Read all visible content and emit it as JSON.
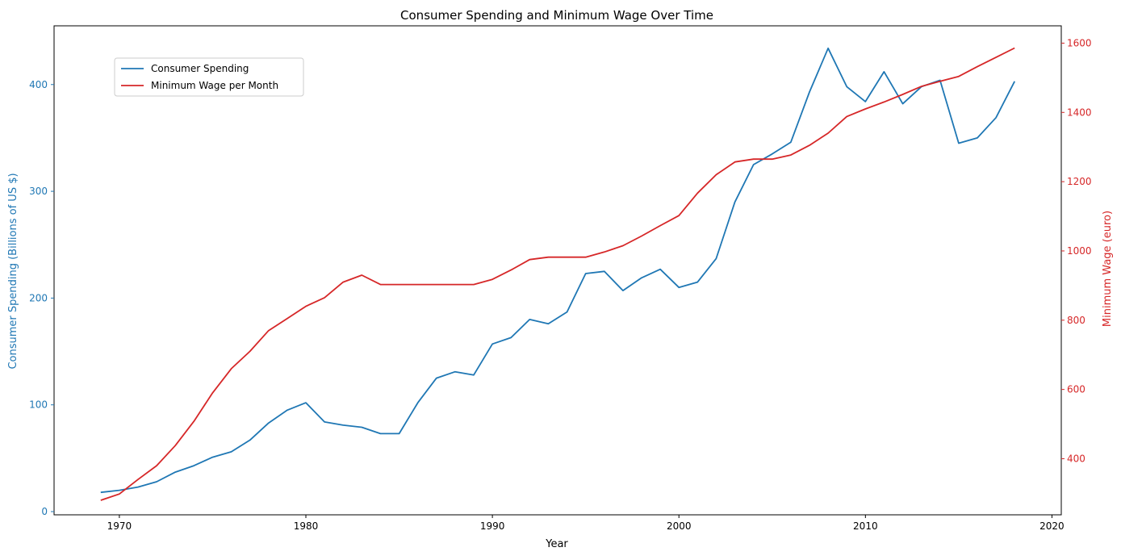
{
  "chart_data": {
    "type": "line",
    "title": "Consumer Spending and Minimum Wage Over Time",
    "xlabel": "Year",
    "ylabel_left": "Consumer Spending (Billions of US $)",
    "ylabel_right": "Minimum Wage (euro)",
    "xlim": [
      1966.5,
      2020.5
    ],
    "ylim_left": [
      -3,
      455
    ],
    "ylim_right": [
      238,
      1650
    ],
    "x_ticks": [
      1970,
      1980,
      1990,
      2000,
      2010,
      2020
    ],
    "y_left_ticks": [
      0,
      100,
      200,
      300,
      400
    ],
    "y_right_ticks": [
      400,
      600,
      800,
      1000,
      1200,
      1400,
      1600
    ],
    "grid": false,
    "legend_position": "upper-left",
    "colors": {
      "left": "#1f77b4",
      "right": "#d62728"
    },
    "x": [
      1969,
      1970,
      1971,
      1972,
      1973,
      1974,
      1975,
      1976,
      1977,
      1978,
      1979,
      1980,
      1981,
      1982,
      1983,
      1984,
      1985,
      1986,
      1987,
      1988,
      1989,
      1990,
      1991,
      1992,
      1993,
      1994,
      1995,
      1996,
      1997,
      1998,
      1999,
      2000,
      2001,
      2002,
      2003,
      2004,
      2005,
      2006,
      2007,
      2008,
      2009,
      2010,
      2011,
      2012,
      2013,
      2014,
      2015,
      2016,
      2017,
      2018
    ],
    "series": [
      {
        "name": "Consumer Spending",
        "axis": "left",
        "color": "#1f77b4",
        "values": [
          18,
          20,
          23,
          28,
          37,
          43,
          51,
          56,
          67,
          83,
          95,
          102,
          84,
          81,
          79,
          73,
          73,
          102,
          125,
          131,
          128,
          157,
          163,
          180,
          176,
          187,
          223,
          225,
          207,
          219,
          227,
          210,
          215,
          237,
          290,
          325,
          335,
          346,
          393,
          434,
          398,
          384,
          412,
          382,
          398,
          404,
          345,
          350,
          369,
          403
        ]
      },
      {
        "name": "Minimum Wage per Month",
        "axis": "right",
        "color": "#d62728",
        "values": [
          280,
          298,
          340,
          380,
          438,
          508,
          590,
          660,
          710,
          770,
          805,
          840,
          865,
          910,
          930,
          903,
          903,
          903,
          903,
          903,
          903,
          918,
          945,
          975,
          982,
          982,
          982,
          997,
          1015,
          1043,
          1073,
          1102,
          1167,
          1220,
          1257,
          1265,
          1265,
          1277,
          1305,
          1340,
          1388,
          1410,
          1430,
          1452,
          1475,
          1490,
          1504,
          1532,
          1559,
          1586
        ]
      }
    ]
  }
}
